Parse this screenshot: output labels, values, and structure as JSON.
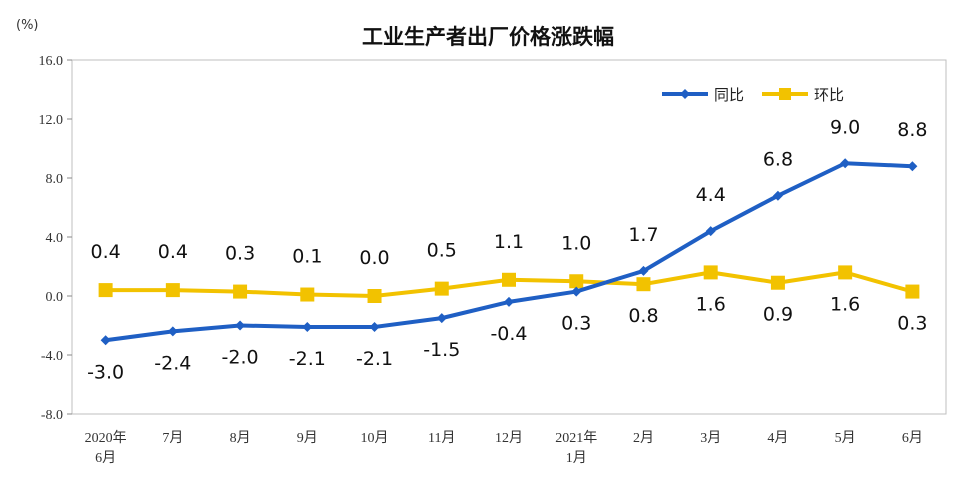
{
  "chart_data": {
    "type": "line",
    "title": "工业生产者出厂价格涨跌幅",
    "unit": "(%)",
    "ylim": [
      -8.0,
      16.0
    ],
    "yticks": [
      "16.0",
      "12.0",
      "8.0",
      "4.0",
      "0.0",
      "-4.0",
      "-8.0"
    ],
    "ytick_values": [
      16,
      12,
      8,
      4,
      0,
      -4,
      -8
    ],
    "categories": [
      [
        "2020年",
        "6月"
      ],
      [
        "7月"
      ],
      [
        "8月"
      ],
      [
        "9月"
      ],
      [
        "10月"
      ],
      [
        "11月"
      ],
      [
        "12月"
      ],
      [
        "2021年",
        "1月"
      ],
      [
        "2月"
      ],
      [
        "3月"
      ],
      [
        "4月"
      ],
      [
        "5月"
      ],
      [
        "6月"
      ]
    ],
    "legend_position": "top-right",
    "series": [
      {
        "name": "同比",
        "color": "#1f5fc4",
        "marker": "diamond",
        "values": [
          -3.0,
          -2.4,
          -2.0,
          -2.1,
          -2.1,
          -1.5,
          -0.4,
          0.3,
          1.7,
          4.4,
          6.8,
          9.0,
          8.8
        ],
        "labels": [
          "-3.0",
          "-2.4",
          "-2.0",
          "-2.1",
          "-2.1",
          "-1.5",
          "-0.4",
          "0.3",
          "1.7",
          "4.4",
          "6.8",
          "9.0",
          "8.8"
        ]
      },
      {
        "name": "环比",
        "color": "#f2c200",
        "marker": "square",
        "values": [
          0.4,
          0.4,
          0.3,
          0.1,
          0.0,
          0.5,
          1.1,
          1.0,
          0.8,
          1.6,
          0.9,
          1.6,
          0.3
        ],
        "labels": [
          "0.4",
          "0.4",
          "0.3",
          "0.1",
          "0.0",
          "0.5",
          "1.1",
          "1.0",
          "0.8",
          "1.6",
          "0.9",
          "1.6",
          "0.3"
        ]
      }
    ]
  }
}
